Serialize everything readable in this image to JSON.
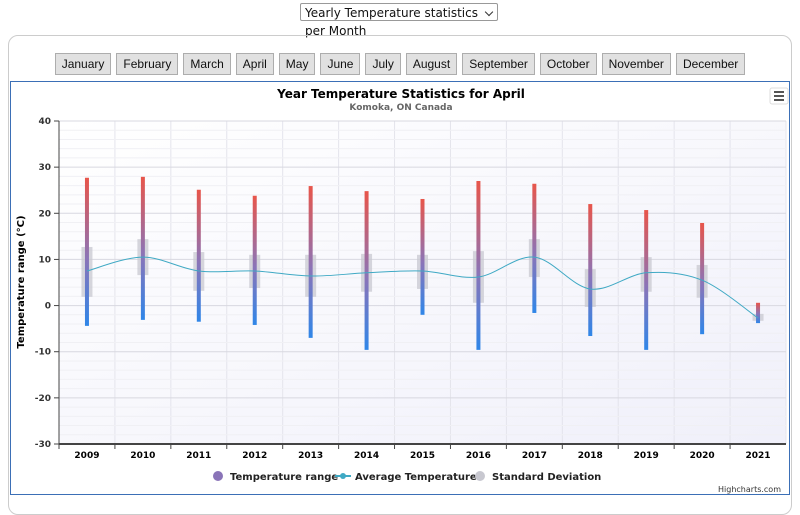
{
  "ui": {
    "dropdown": "Yearly Temperature statistics per Month",
    "buttons": [
      "January",
      "February",
      "March",
      "April",
      "May",
      "June",
      "July",
      "August",
      "September",
      "October",
      "November",
      "December"
    ]
  },
  "chart_data": {
    "type": "range",
    "title": "Year Temperature Statistics for April",
    "subtitle": "Komoka, ON Canada",
    "y_axis_label": "Temperature range (°C)",
    "credits": "Highcharts.com",
    "categories": [
      "2009",
      "2010",
      "2011",
      "2012",
      "2013",
      "2014",
      "2015",
      "2016",
      "2017",
      "2018",
      "2019",
      "2020",
      "2021"
    ],
    "ylim": [
      -30,
      40
    ],
    "yticks": [
      -30,
      -20,
      -10,
      0,
      10,
      20,
      30,
      40
    ],
    "grid": true,
    "series": [
      {
        "name": "Temperature range",
        "type": "columnrange",
        "color": "#8a74b8",
        "low": [
          -4.4,
          -3.1,
          -3.5,
          -4.2,
          -7.0,
          -9.6,
          -2.0,
          -9.6,
          -1.6,
          -6.6,
          -9.6,
          -6.2,
          -3.8
        ],
        "high": [
          27.7,
          27.9,
          25.1,
          23.8,
          25.9,
          24.8,
          23.1,
          27.0,
          26.4,
          22.0,
          20.7,
          17.9,
          0.6
        ]
      },
      {
        "name": "Average Temperature",
        "type": "spline",
        "color": "#3fa9c4",
        "values": [
          7.5,
          10.5,
          7.5,
          7.5,
          6.4,
          7.1,
          7.5,
          6.2,
          10.5,
          3.6,
          7.1,
          5.5,
          -2.7
        ]
      },
      {
        "name": "Standard Deviation",
        "type": "columnrange",
        "color": "#c8c8d0",
        "low": [
          1.9,
          6.6,
          3.2,
          3.8,
          1.9,
          3.0,
          3.6,
          0.6,
          6.2,
          -0.3,
          3.0,
          1.7,
          -3.3
        ],
        "high": [
          12.7,
          14.4,
          11.6,
          11.0,
          11.0,
          11.2,
          11.0,
          11.8,
          14.4,
          7.9,
          10.5,
          8.8,
          -1.8
        ]
      }
    ]
  }
}
